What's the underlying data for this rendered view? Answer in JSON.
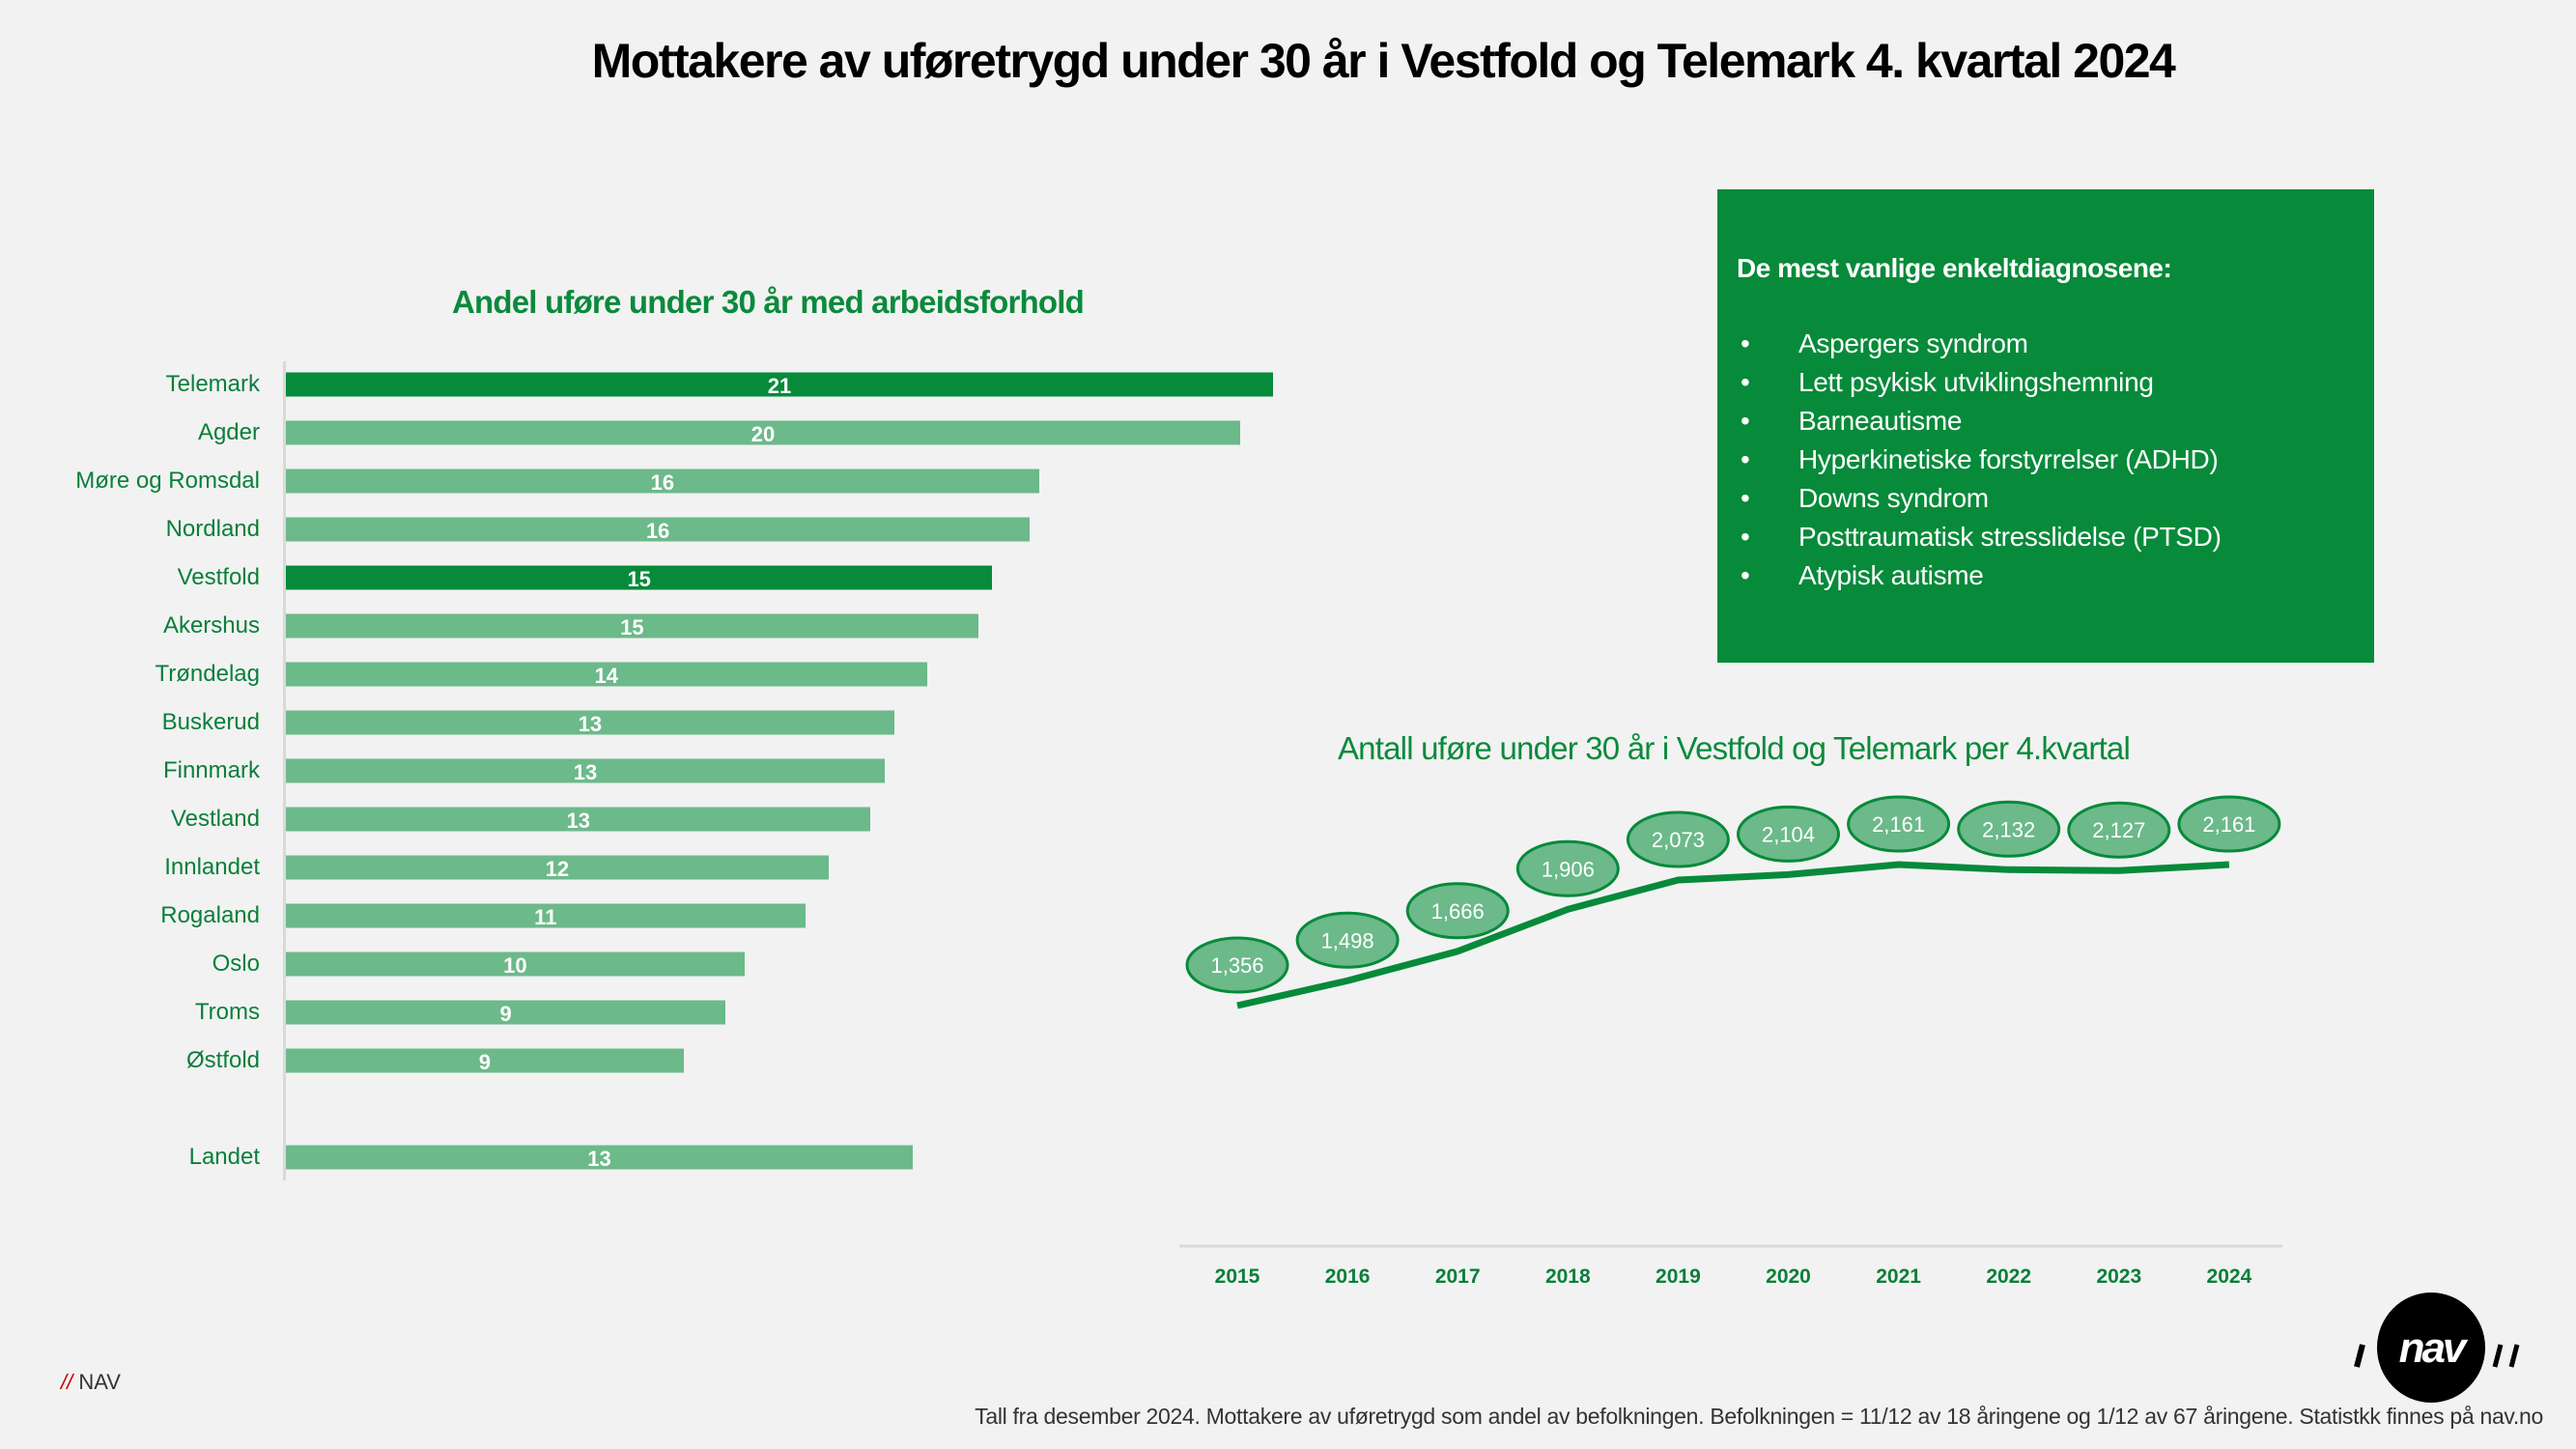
{
  "title": "Mottakere av uføretrygd under 30 år i Vestfold og Telemark 4. kvartal  2024",
  "colors": {
    "highlight": "#078a3a",
    "bar": "#6cb98a",
    "text_green": "#0a7f3a",
    "box": "#078a3a"
  },
  "chart_data": [
    {
      "type": "bar",
      "orientation": "horizontal",
      "title": "Andel uføre under 30 år med arbeidsforhold",
      "categories": [
        "Telemark",
        "Agder",
        "Møre og Romsdal",
        "Nordland",
        "Vestfold",
        "Akershus",
        "Trøndelag",
        "Buskerud",
        "Finnmark",
        "Vestland",
        "Innlandet",
        "Rogaland",
        "Oslo",
        "Troms",
        "Østfold",
        "",
        "Landet"
      ],
      "values": [
        21.1,
        20.4,
        16.1,
        15.9,
        15.1,
        14.8,
        13.7,
        13.0,
        12.8,
        12.5,
        11.6,
        11.1,
        9.8,
        9.4,
        8.5,
        null,
        13.4
      ],
      "labels": [
        "21",
        "20",
        "16",
        "16",
        "15",
        "15",
        "14",
        "13",
        "13",
        "13",
        "12",
        "11",
        "10",
        "9",
        "9",
        "",
        "13"
      ],
      "highlighted": [
        "Telemark",
        "Vestfold"
      ],
      "xlim": [
        0,
        21.1
      ],
      "grid": false
    },
    {
      "type": "line",
      "title": "Antall uføre under 30 år i Vestfold og Telemark per 4.kvartal",
      "x": [
        "2015",
        "2016",
        "2017",
        "2018",
        "2019",
        "2020",
        "2021",
        "2022",
        "2023",
        "2024"
      ],
      "values": [
        1356,
        1498,
        1666,
        1906,
        2073,
        2104,
        2161,
        2132,
        2127,
        2161
      ],
      "labels": [
        "1,356",
        "1,498",
        "1,666",
        "1,906",
        "2,073",
        "2,104",
        "2,161",
        "2,132",
        "2,127",
        "2,161"
      ],
      "grid": false
    }
  ],
  "diagnoses": {
    "heading": "De mest vanlige enkeltdiagnosene:",
    "bullet": "•",
    "items": [
      "Aspergers syndrom",
      "Lett psykisk utviklingshemning",
      "Barneautisme",
      "Hyperkinetiske forstyrrelser (ADHD)",
      "Downs syndrom",
      "Posttraumatisk stresslidelse (PTSD)",
      "Atypisk autisme"
    ]
  },
  "footer": {
    "nav_slashes": "//",
    "nav_text": "NAV",
    "note": "Tall fra desember 2024. Mottakere av uføretrygd som andel av befolkningen. Befolkningen = 11/12 av 18 åringene og 1/12 av 67 åringene. Statistkk finnes på nav.no",
    "logo_text": "nav"
  }
}
